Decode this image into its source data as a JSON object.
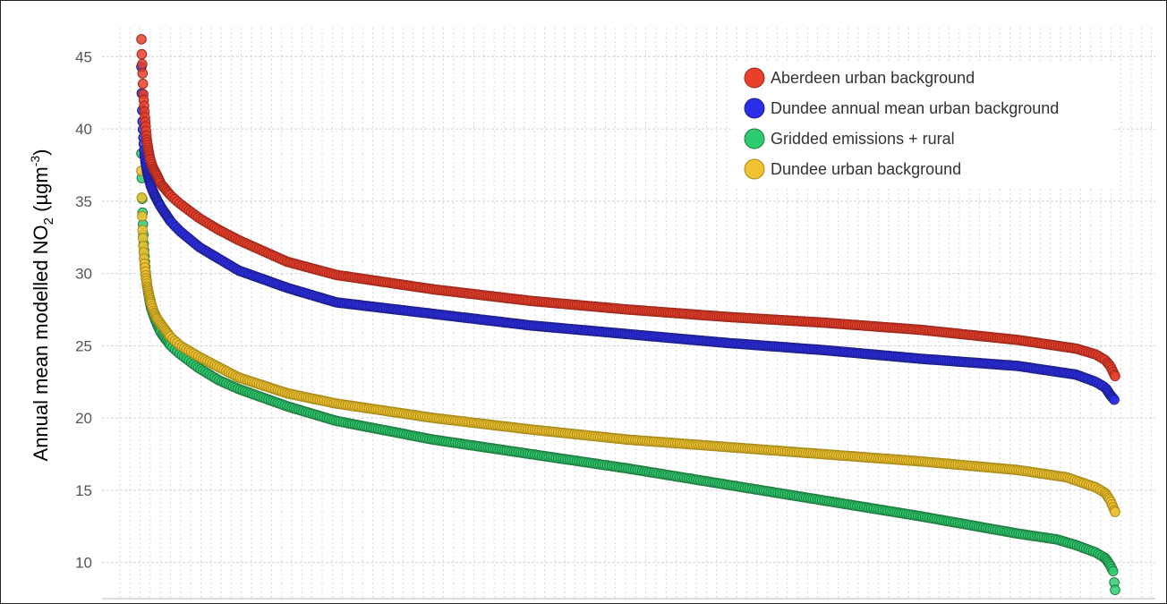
{
  "chart_data": {
    "type": "scatter",
    "ylabel": "Annual mean modelled NO",
    "ylabel_sub": "2",
    "ylabel_unit_open": " (µgm",
    "ylabel_unit_sup": "-3",
    "ylabel_unit_close": ")",
    "ylim": [
      7.5,
      47
    ],
    "yticks": [
      10,
      15,
      20,
      25,
      30,
      35,
      40,
      45
    ],
    "grid": true,
    "legend_position": "top-right",
    "colors": {
      "aberdeen_fill": "#e8402a",
      "aberdeen_edge": "#a0281c",
      "dundee_mean_fill": "#2a2ee8",
      "dundee_mean_edge": "#1e1e8a",
      "gridded_fill": "#2ecc71",
      "gridded_edge": "#1e7a3e",
      "dundee_ub_fill": "#f1c232",
      "dundee_ub_edge": "#a88a18"
    },
    "series": [
      {
        "name": "Aberdeen urban background",
        "key": "aberdeen",
        "x": [
          0,
          0.02,
          0.05,
          0.1,
          0.15,
          0.2,
          0.28,
          0.36,
          0.45,
          0.55,
          0.7,
          0.9,
          1.2,
          1.6,
          2,
          3,
          4,
          6,
          8,
          10,
          15,
          20,
          30,
          40,
          50,
          60,
          70,
          80,
          90,
          96,
          98,
          99,
          99.5,
          100
        ],
        "y": [
          46.2,
          45.7,
          44.9,
          44.2,
          43.3,
          42.4,
          41.6,
          40.8,
          40.1,
          39.3,
          38.6,
          37.9,
          37.3,
          36.8,
          36.2,
          35.4,
          34.8,
          33.8,
          33.0,
          32.3,
          30.8,
          29.9,
          28.9,
          28.1,
          27.5,
          27.0,
          26.6,
          26.1,
          25.4,
          24.8,
          24.4,
          24.0,
          23.6,
          22.9
        ]
      },
      {
        "name": "Dundee annual mean urban background",
        "key": "dundee_mean",
        "x": [
          0,
          0.05,
          0.1,
          0.2,
          0.3,
          0.45,
          0.6,
          0.8,
          1.0,
          1.3,
          1.6,
          2,
          3,
          4,
          6,
          8,
          10,
          15,
          20,
          30,
          40,
          50,
          60,
          70,
          80,
          90,
          96,
          98,
          99,
          99.5,
          100
        ],
        "y": [
          44.3,
          42.0,
          40.8,
          39.4,
          38.3,
          37.6,
          37.0,
          36.5,
          36.0,
          35.5,
          35.1,
          34.6,
          33.6,
          32.9,
          31.8,
          31.0,
          30.2,
          29.0,
          28.0,
          27.2,
          26.4,
          25.8,
          25.2,
          24.7,
          24.1,
          23.6,
          23.0,
          22.5,
          22.1,
          21.6,
          21.2
        ]
      },
      {
        "name": "Gridded emissions + rural",
        "key": "gridded",
        "x": [
          0,
          0.03,
          0.07,
          0.12,
          0.18,
          0.25,
          0.35,
          0.45,
          0.6,
          0.8,
          1.0,
          1.3,
          1.6,
          2,
          3,
          4,
          6,
          8,
          10,
          15,
          20,
          30,
          40,
          50,
          60,
          70,
          80,
          90,
          94,
          96,
          98,
          99,
          99.5,
          99.8,
          100
        ],
        "y": [
          38.3,
          37.0,
          35.4,
          34.2,
          33.0,
          31.9,
          30.9,
          30.0,
          29.1,
          28.3,
          27.6,
          27.0,
          26.5,
          25.9,
          25.0,
          24.4,
          23.4,
          22.6,
          22.0,
          20.8,
          19.8,
          18.5,
          17.5,
          16.5,
          15.4,
          14.3,
          13.2,
          12.0,
          11.6,
          11.2,
          10.7,
          10.3,
          9.8,
          9.4,
          8.1
        ]
      },
      {
        "name": "Dundee urban background",
        "key": "dundee_ub",
        "x": [
          0,
          0.03,
          0.07,
          0.12,
          0.2,
          0.3,
          0.45,
          0.6,
          0.8,
          1.0,
          1.3,
          1.6,
          2,
          3,
          4,
          6,
          8,
          10,
          15,
          20,
          30,
          40,
          50,
          60,
          70,
          80,
          90,
          95,
          98,
          99,
          99.5,
          100
        ],
        "y": [
          37.1,
          35.6,
          34.2,
          33.0,
          31.9,
          30.8,
          29.8,
          29.1,
          28.5,
          27.9,
          27.3,
          26.9,
          26.5,
          25.6,
          25.0,
          24.2,
          23.5,
          22.8,
          21.7,
          21.0,
          20.0,
          19.2,
          18.5,
          18.0,
          17.5,
          17.0,
          16.4,
          15.9,
          15.2,
          14.8,
          14.3,
          13.5
        ]
      }
    ]
  }
}
